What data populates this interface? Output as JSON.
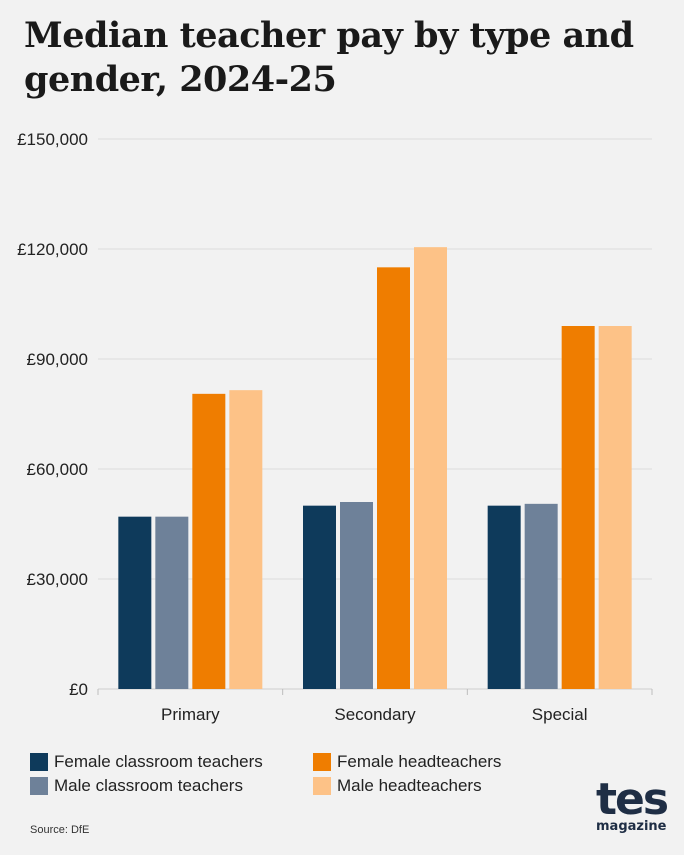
{
  "title": "Median teacher pay by type and gender, 2024-25",
  "source": "Source: DfE",
  "logo": {
    "main": "tes",
    "sub": "magazine"
  },
  "chart_data": {
    "type": "bar",
    "categories": [
      "Primary",
      "Secondary",
      "Special"
    ],
    "series": [
      {
        "name": "Female classroom teachers",
        "color": "#0e3a5b",
        "values": [
          47000,
          50000,
          50000
        ]
      },
      {
        "name": "Male classroom teachers",
        "color": "#6e8199",
        "values": [
          47000,
          51000,
          50500
        ]
      },
      {
        "name": "Female headteachers",
        "color": "#ef7d00",
        "values": [
          80500,
          115000,
          99000
        ]
      },
      {
        "name": "Male headteachers",
        "color": "#fdc287",
        "values": [
          81500,
          120500,
          99000
        ]
      }
    ],
    "ylim": [
      0,
      150000
    ],
    "yticks": [
      {
        "value": 0,
        "label": "£0"
      },
      {
        "value": 30000,
        "label": "£30,000"
      },
      {
        "value": 60000,
        "label": "£60,000"
      },
      {
        "value": 90000,
        "label": "£90,000"
      },
      {
        "value": 120000,
        "label": "£120,000"
      },
      {
        "value": 150000,
        "label": "£150,000"
      }
    ],
    "grid": true,
    "legend_position": "bottom"
  }
}
